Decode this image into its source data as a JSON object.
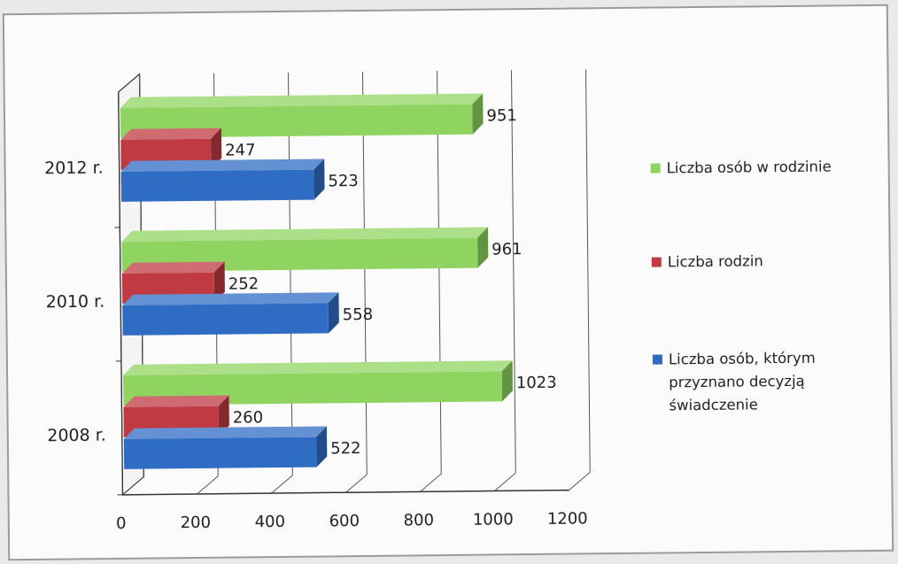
{
  "chart_data": {
    "type": "bar",
    "orientation": "horizontal",
    "categories": [
      "2008 r.",
      "2010 r.",
      "2012 r."
    ],
    "series": [
      {
        "name": "Liczba osób, którym przyznano decyzją świadczenie",
        "values": [
          522,
          558,
          523
        ],
        "color": "#2f6cc4"
      },
      {
        "name": "Liczba rodzin",
        "values": [
          260,
          252,
          247
        ],
        "color": "#c03a43"
      },
      {
        "name": "Liczba osób w rodzinie",
        "values": [
          1023,
          961,
          951
        ],
        "color": "#8fd460"
      }
    ],
    "xlim": [
      0,
      1200
    ],
    "x_ticks": [
      "0",
      "200",
      "400",
      "600",
      "800",
      "1000",
      "1200"
    ],
    "grid": true,
    "legend_position": "right",
    "three_d": true
  },
  "legend": {
    "items": [
      {
        "label": "Liczba osób w rodzinie",
        "color": "#8fd460"
      },
      {
        "label": "Liczba rodzin",
        "color": "#c03a43"
      },
      {
        "label": "Liczba osób, którym przyznano decyzją świadczenie",
        "color": "#2f6cc4"
      }
    ]
  }
}
